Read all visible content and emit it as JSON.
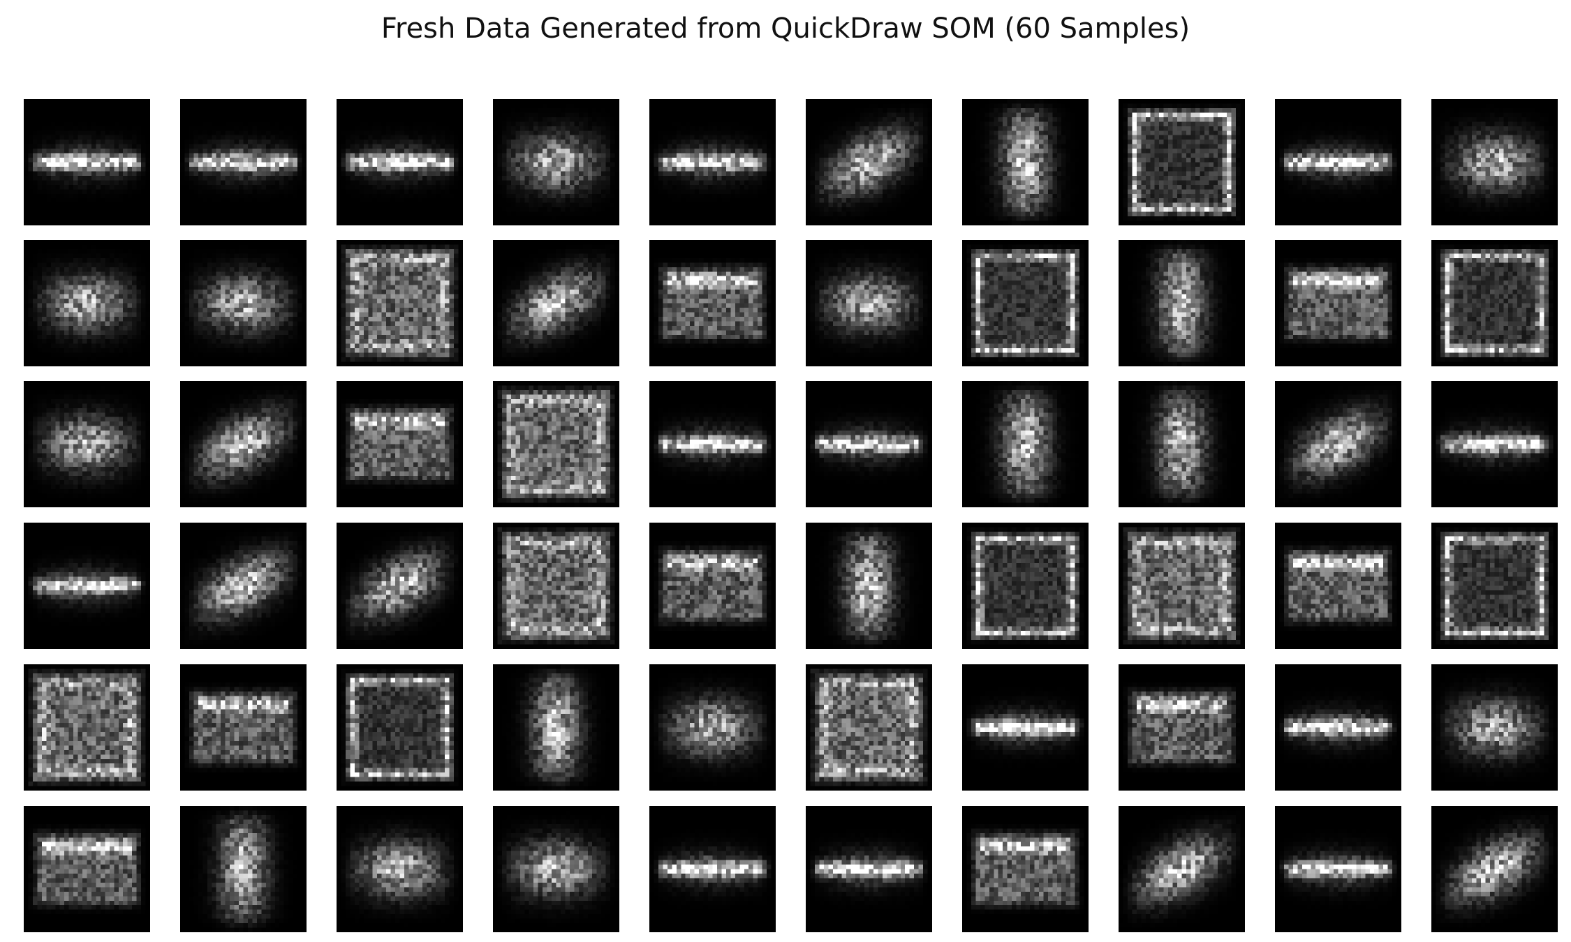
{
  "figure": {
    "title": "Fresh Data Generated from QuickDraw SOM (60 Samples)"
  },
  "grid": {
    "rows": 6,
    "cols": 10,
    "image_resolution": 28,
    "colormap": "gray",
    "background_color": "#000000",
    "samples": [
      {
        "shape": "line"
      },
      {
        "shape": "line"
      },
      {
        "shape": "line"
      },
      {
        "shape": "blob"
      },
      {
        "shape": "line"
      },
      {
        "shape": "tilt"
      },
      {
        "shape": "tall"
      },
      {
        "shape": "ring"
      },
      {
        "shape": "line"
      },
      {
        "shape": "blob"
      },
      {
        "shape": "blob"
      },
      {
        "shape": "blob"
      },
      {
        "shape": "square"
      },
      {
        "shape": "tilt"
      },
      {
        "shape": "rect"
      },
      {
        "shape": "blob"
      },
      {
        "shape": "ring"
      },
      {
        "shape": "tall"
      },
      {
        "shape": "rect"
      },
      {
        "shape": "ring"
      },
      {
        "shape": "blob"
      },
      {
        "shape": "tilt"
      },
      {
        "shape": "rect"
      },
      {
        "shape": "square"
      },
      {
        "shape": "line"
      },
      {
        "shape": "line"
      },
      {
        "shape": "tall"
      },
      {
        "shape": "tall"
      },
      {
        "shape": "tilt"
      },
      {
        "shape": "line"
      },
      {
        "shape": "line"
      },
      {
        "shape": "tilt"
      },
      {
        "shape": "tilt"
      },
      {
        "shape": "square"
      },
      {
        "shape": "rect"
      },
      {
        "shape": "tall"
      },
      {
        "shape": "ring"
      },
      {
        "shape": "square"
      },
      {
        "shape": "rect"
      },
      {
        "shape": "ring"
      },
      {
        "shape": "square"
      },
      {
        "shape": "rect"
      },
      {
        "shape": "ring"
      },
      {
        "shape": "tall"
      },
      {
        "shape": "blob"
      },
      {
        "shape": "square"
      },
      {
        "shape": "line"
      },
      {
        "shape": "rect"
      },
      {
        "shape": "line"
      },
      {
        "shape": "blob"
      },
      {
        "shape": "rect"
      },
      {
        "shape": "tall"
      },
      {
        "shape": "blob"
      },
      {
        "shape": "blob"
      },
      {
        "shape": "line"
      },
      {
        "shape": "line"
      },
      {
        "shape": "rect"
      },
      {
        "shape": "tilt"
      },
      {
        "shape": "line"
      },
      {
        "shape": "tilt"
      }
    ]
  }
}
